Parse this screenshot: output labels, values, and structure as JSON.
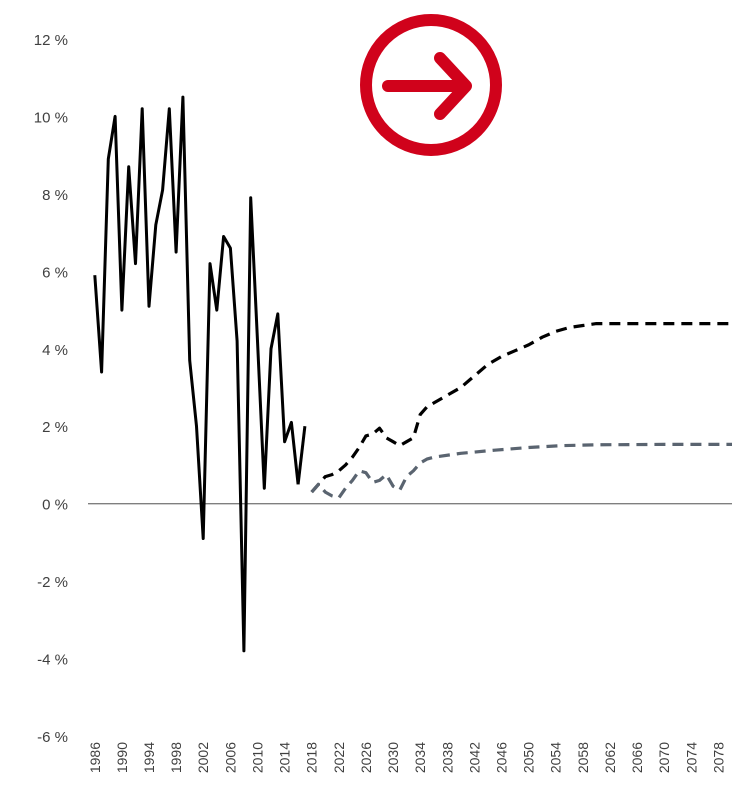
{
  "chart_data": {
    "type": "line",
    "title": "",
    "xlabel": "",
    "ylabel": "",
    "ylim": [
      -6,
      12
    ],
    "y_tick_step": 2,
    "y_tick_suffix": " %",
    "x_tick_years": [
      1986,
      1990,
      1994,
      1998,
      2002,
      2006,
      2010,
      2014,
      2018,
      2022,
      2026,
      2030,
      2034,
      2038,
      2042,
      2046,
      2050,
      2054,
      2058,
      2062,
      2066,
      2070,
      2074,
      2078
    ],
    "xlim": [
      1985,
      2080
    ],
    "zero_line": true,
    "legend": "none",
    "icon": "arrow-right-circle-icon",
    "colors": {
      "historical": "#000000",
      "projection_high": "#000000",
      "projection_low": "#5a6470",
      "icon": "#d0021b",
      "axis": "#7f7f7f",
      "text": "#404040"
    },
    "series": [
      {
        "style": "solid",
        "x": [
          1986,
          1987,
          1988,
          1989,
          1990,
          1991,
          1992,
          1993,
          1994,
          1995,
          1996,
          1997,
          1998,
          1999,
          2000,
          2001,
          2002,
          2003,
          2004,
          2005,
          2006,
          2007,
          2008,
          2009,
          2010,
          2011,
          2012,
          2013,
          2014,
          2015,
          2016
        ],
        "y": [
          5.9,
          3.4,
          8.9,
          10.0,
          5.0,
          8.7,
          6.2,
          10.2,
          5.1,
          7.2,
          8.1,
          10.2,
          6.5,
          10.5,
          3.7,
          2.0,
          -0.9,
          6.2,
          5.0,
          6.9,
          6.6,
          4.2,
          -3.8,
          7.9,
          4.2,
          0.4,
          4.0,
          4.9,
          1.6,
          2.1,
          0.5
        ]
      },
      {
        "style": "solid",
        "x": [
          2016,
          2017
        ],
        "y": [
          0.5,
          2.0
        ]
      },
      {
        "style": "dashed",
        "x": [
          2018,
          2019,
          2020,
          2021,
          2022,
          2023,
          2024,
          2025,
          2026,
          2027,
          2028,
          2029,
          2030,
          2031,
          2032,
          2033,
          2034,
          2035,
          2036,
          2038,
          2040,
          2042,
          2044,
          2046,
          2048,
          2050,
          2052,
          2054,
          2056,
          2058,
          2060,
          2062,
          2070,
          2080
        ],
        "y": [
          0.3,
          0.5,
          0.7,
          0.75,
          0.85,
          1.0,
          1.2,
          1.45,
          1.75,
          1.8,
          1.95,
          1.7,
          1.6,
          1.5,
          1.6,
          1.7,
          2.3,
          2.5,
          2.6,
          2.8,
          3.0,
          3.3,
          3.6,
          3.8,
          3.95,
          4.1,
          4.3,
          4.45,
          4.55,
          4.6,
          4.65,
          4.65,
          4.65,
          4.65
        ]
      },
      {
        "style": "dashed",
        "x": [
          2018,
          2019,
          2020,
          2021,
          2022,
          2023,
          2024,
          2025,
          2026,
          2027,
          2028,
          2029,
          2030,
          2031,
          2032,
          2033,
          2034,
          2035,
          2036,
          2040,
          2045,
          2050,
          2055,
          2060,
          2070,
          2080
        ],
        "y": [
          0.3,
          0.5,
          0.3,
          0.2,
          0.15,
          0.4,
          0.6,
          0.85,
          0.8,
          0.55,
          0.6,
          0.75,
          0.45,
          0.35,
          0.7,
          0.85,
          1.05,
          1.15,
          1.2,
          1.3,
          1.38,
          1.45,
          1.5,
          1.52,
          1.53,
          1.53
        ]
      }
    ]
  }
}
